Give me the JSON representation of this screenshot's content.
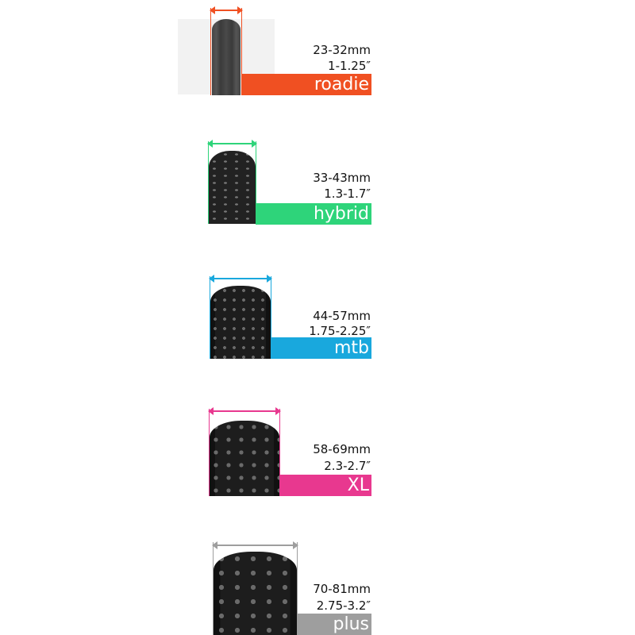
{
  "tires": [
    {
      "mm": "23-32mm",
      "inches": "1-1.25″",
      "category": "roadie",
      "color": "#f05022"
    },
    {
      "mm": "33-43mm",
      "inches": "1.3-1.7″",
      "category": "hybrid",
      "color": "#2ed47a"
    },
    {
      "mm": "44-57mm",
      "inches": "1.75-2.25″",
      "category": "mtb",
      "color": "#19a8dd"
    },
    {
      "mm": "58-69mm",
      "inches": "2.3-2.7″",
      "category": "XL",
      "color": "#e8388f"
    },
    {
      "mm": "70-81mm",
      "inches": "2.75-3.2″",
      "category": "plus",
      "color": "#9e9e9e"
    }
  ]
}
